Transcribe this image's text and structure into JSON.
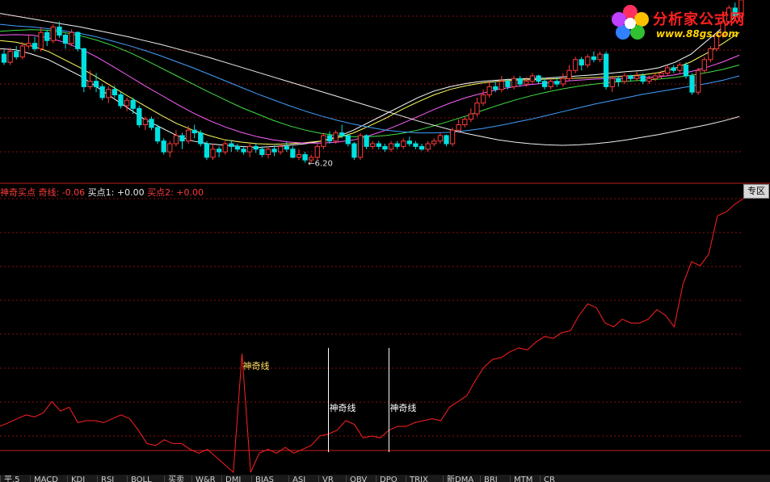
{
  "logo": {
    "title": "分析家公式网",
    "url": "www.88gs.com"
  },
  "indicator_header": {
    "name": "神奇买点",
    "qixian": "奇线: -0.06",
    "buy1": "买点1: +0.00",
    "buy2": "买点2: +0.00"
  },
  "zone_button": "专区",
  "tabs": [
    "平.5",
    "MACD",
    "KDJ",
    "RSI",
    "BOLL",
    "买卖",
    "W&R",
    "DMI",
    "BIAS",
    "ASI",
    "VR",
    "OBV",
    "DPO",
    "TRIX",
    "新DMA",
    "BRI",
    "MTM",
    "CR"
  ],
  "colors": {
    "up": "#ff3b3b",
    "down": "#00e0e0",
    "grid": "#8a1010",
    "indicator": "#ff2020"
  },
  "chart_data": [
    {
      "type": "candlestick",
      "annotations": [
        {
          "text": "←6.20",
          "index": 50,
          "value": 6.2
        }
      ],
      "candles": [
        [
          8.2,
          8.05,
          8.28,
          8.0
        ],
        [
          8.05,
          8.25,
          8.32,
          8.0
        ],
        [
          8.25,
          8.15,
          8.35,
          8.1
        ],
        [
          8.15,
          8.35,
          8.42,
          8.1
        ],
        [
          8.35,
          8.4,
          8.55,
          8.3
        ],
        [
          8.4,
          8.3,
          8.52,
          8.25
        ],
        [
          8.3,
          8.6,
          8.7,
          8.25
        ],
        [
          8.6,
          8.45,
          8.65,
          8.35
        ],
        [
          8.45,
          8.7,
          8.75,
          8.4
        ],
        [
          8.7,
          8.55,
          8.8,
          8.5
        ],
        [
          8.55,
          8.4,
          8.58,
          8.3
        ],
        [
          8.4,
          8.6,
          8.66,
          8.35
        ],
        [
          8.6,
          8.3,
          8.62,
          8.25
        ],
        [
          8.3,
          7.6,
          8.32,
          7.5
        ],
        [
          7.6,
          7.7,
          7.9,
          7.55
        ],
        [
          7.7,
          7.6,
          7.85,
          7.5
        ],
        [
          7.6,
          7.4,
          7.65,
          7.35
        ],
        [
          7.4,
          7.55,
          7.6,
          7.3
        ],
        [
          7.55,
          7.45,
          7.62,
          7.4
        ],
        [
          7.45,
          7.25,
          7.5,
          7.2
        ],
        [
          7.25,
          7.35,
          7.4,
          7.15
        ],
        [
          7.35,
          7.2,
          7.4,
          7.1
        ],
        [
          7.2,
          6.9,
          7.25,
          6.85
        ],
        [
          6.9,
          7.0,
          7.05,
          6.8
        ],
        [
          7.0,
          6.85,
          7.05,
          6.8
        ],
        [
          6.85,
          6.6,
          6.9,
          6.55
        ],
        [
          6.6,
          6.4,
          6.65,
          6.35
        ],
        [
          6.4,
          6.55,
          6.6,
          6.3
        ],
        [
          6.55,
          6.7,
          6.8,
          6.5
        ],
        [
          6.7,
          6.6,
          6.75,
          6.45
        ],
        [
          6.6,
          6.8,
          6.88,
          6.55
        ],
        [
          6.8,
          6.75,
          6.9,
          6.65
        ],
        [
          6.75,
          6.55,
          6.8,
          6.5
        ],
        [
          6.55,
          6.3,
          6.6,
          6.25
        ],
        [
          6.3,
          6.45,
          6.55,
          6.25
        ],
        [
          6.45,
          6.4,
          6.5,
          6.3
        ],
        [
          6.4,
          6.55,
          6.6,
          6.35
        ],
        [
          6.55,
          6.5,
          6.62,
          6.4
        ],
        [
          6.5,
          6.45,
          6.55,
          6.4
        ],
        [
          6.45,
          6.4,
          6.5,
          6.35
        ],
        [
          6.4,
          6.5,
          6.55,
          6.3
        ],
        [
          6.5,
          6.45,
          6.55,
          6.38
        ],
        [
          6.45,
          6.35,
          6.5,
          6.3
        ],
        [
          6.35,
          6.45,
          6.5,
          6.28
        ],
        [
          6.45,
          6.4,
          6.52,
          6.32
        ],
        [
          6.4,
          6.5,
          6.55,
          6.35
        ],
        [
          6.5,
          6.45,
          6.58,
          6.4
        ],
        [
          6.45,
          6.3,
          6.5,
          6.28
        ],
        [
          6.3,
          6.35,
          6.45,
          6.25
        ],
        [
          6.35,
          6.25,
          6.4,
          6.2
        ],
        [
          6.25,
          6.3,
          6.35,
          6.2
        ],
        [
          6.3,
          6.5,
          6.55,
          6.25
        ],
        [
          6.5,
          6.7,
          6.75,
          6.45
        ],
        [
          6.7,
          6.6,
          6.78,
          6.55
        ],
        [
          6.6,
          6.75,
          6.8,
          6.55
        ],
        [
          6.75,
          6.7,
          6.9,
          6.65
        ],
        [
          6.7,
          6.55,
          6.72,
          6.5
        ],
        [
          6.55,
          6.3,
          6.58,
          6.25
        ],
        [
          6.3,
          6.7,
          6.75,
          6.25
        ],
        [
          6.7,
          6.5,
          6.72,
          6.45
        ],
        [
          6.5,
          6.55,
          6.6,
          6.45
        ],
        [
          6.55,
          6.5,
          6.6,
          6.45
        ],
        [
          6.5,
          6.45,
          6.55,
          6.4
        ],
        [
          6.45,
          6.55,
          6.6,
          6.4
        ],
        [
          6.55,
          6.5,
          6.6,
          6.45
        ],
        [
          6.5,
          6.6,
          6.65,
          6.45
        ],
        [
          6.6,
          6.55,
          6.68,
          6.5
        ],
        [
          6.55,
          6.5,
          6.6,
          6.45
        ],
        [
          6.5,
          6.45,
          6.55,
          6.42
        ],
        [
          6.45,
          6.55,
          6.6,
          6.4
        ],
        [
          6.55,
          6.6,
          6.65,
          6.5
        ],
        [
          6.6,
          6.7,
          6.75,
          6.55
        ],
        [
          6.7,
          6.55,
          6.72,
          6.5
        ],
        [
          6.55,
          6.8,
          6.85,
          6.5
        ],
        [
          6.8,
          6.9,
          7.0,
          6.75
        ],
        [
          6.9,
          7.0,
          7.05,
          6.85
        ],
        [
          7.0,
          7.1,
          7.2,
          6.95
        ],
        [
          7.1,
          7.3,
          7.4,
          7.05
        ],
        [
          7.3,
          7.45,
          7.55,
          7.25
        ],
        [
          7.45,
          7.6,
          7.7,
          7.4
        ],
        [
          7.6,
          7.55,
          7.7,
          7.5
        ],
        [
          7.55,
          7.7,
          7.8,
          7.5
        ],
        [
          7.7,
          7.6,
          7.75,
          7.55
        ],
        [
          7.6,
          7.75,
          7.8,
          7.55
        ],
        [
          7.75,
          7.65,
          7.8,
          7.6
        ],
        [
          7.65,
          7.7,
          7.78,
          7.6
        ],
        [
          7.7,
          7.8,
          7.85,
          7.65
        ],
        [
          7.8,
          7.7,
          7.82,
          7.65
        ],
        [
          7.7,
          7.6,
          7.75,
          7.55
        ],
        [
          7.6,
          7.7,
          7.75,
          7.55
        ],
        [
          7.7,
          7.65,
          7.78,
          7.6
        ],
        [
          7.65,
          7.75,
          7.85,
          7.6
        ],
        [
          7.75,
          7.9,
          8.0,
          7.7
        ],
        [
          7.9,
          8.1,
          8.15,
          7.85
        ],
        [
          8.1,
          8.0,
          8.15,
          7.9
        ],
        [
          8.0,
          8.15,
          8.2,
          7.95
        ],
        [
          8.15,
          8.1,
          8.25,
          8.05
        ],
        [
          8.1,
          8.2,
          8.25,
          8.05
        ],
        [
          8.2,
          7.6,
          8.25,
          7.55
        ],
        [
          7.6,
          7.75,
          7.8,
          7.5
        ],
        [
          7.75,
          7.7,
          7.8,
          7.6
        ],
        [
          7.7,
          7.8,
          7.85,
          7.65
        ],
        [
          7.8,
          7.75,
          7.82,
          7.7
        ],
        [
          7.75,
          7.8,
          7.88,
          7.7
        ],
        [
          7.8,
          7.7,
          7.85,
          7.65
        ],
        [
          7.7,
          7.75,
          7.8,
          7.65
        ],
        [
          7.75,
          7.8,
          7.85,
          7.7
        ],
        [
          7.8,
          7.85,
          7.9,
          7.75
        ],
        [
          7.85,
          7.95,
          8.0,
          7.8
        ],
        [
          7.95,
          7.9,
          8.0,
          7.85
        ],
        [
          7.9,
          8.0,
          8.05,
          7.85
        ],
        [
          8.0,
          7.8,
          8.05,
          7.75
        ],
        [
          7.8,
          7.5,
          7.85,
          7.45
        ],
        [
          7.5,
          7.9,
          7.95,
          7.45
        ],
        [
          7.9,
          8.1,
          8.15,
          7.85
        ],
        [
          8.1,
          8.3,
          8.35,
          8.05
        ],
        [
          8.3,
          8.55,
          8.6,
          8.25
        ],
        [
          8.55,
          8.8,
          8.85,
          8.5
        ],
        [
          8.8,
          9.05,
          9.1,
          8.75
        ],
        [
          9.05,
          8.9,
          9.15,
          8.85
        ],
        [
          8.9,
          9.2,
          9.3,
          8.85
        ]
      ],
      "ma": [
        {
          "color": "#ffffff",
          "values": [
            8.3,
            8.28,
            8.2,
            8.1,
            7.95,
            7.8,
            7.6,
            7.4,
            7.2,
            7.0,
            6.85,
            6.7,
            6.6,
            6.55,
            6.52,
            6.5,
            6.48,
            6.5,
            6.52,
            6.55,
            6.6,
            6.68,
            6.8,
            6.95,
            7.1,
            7.25,
            7.4,
            7.52,
            7.6,
            7.66,
            7.7,
            7.72,
            7.74,
            7.75,
            7.76,
            7.78,
            7.8,
            7.82,
            7.85,
            7.88,
            7.9,
            7.95,
            8.05,
            8.2,
            8.45,
            8.7,
            8.95
          ]
        },
        {
          "color": "#ffff60",
          "values": [
            8.45,
            8.42,
            8.35,
            8.25,
            8.1,
            7.95,
            7.78,
            7.6,
            7.42,
            7.25,
            7.08,
            6.92,
            6.8,
            6.7,
            6.62,
            6.58,
            6.55,
            6.54,
            6.55,
            6.57,
            6.6,
            6.66,
            6.75,
            6.88,
            7.02,
            7.18,
            7.32,
            7.45,
            7.55,
            7.62,
            7.67,
            7.7,
            7.72,
            7.73,
            7.74,
            7.75,
            7.76,
            7.77,
            7.78,
            7.8,
            7.82,
            7.86,
            7.94,
            8.06,
            8.22,
            8.4,
            8.6
          ]
        },
        {
          "color": "#ff60ff",
          "values": [
            8.55,
            8.56,
            8.55,
            8.5,
            8.42,
            8.3,
            8.15,
            7.98,
            7.8,
            7.62,
            7.45,
            7.28,
            7.12,
            6.98,
            6.86,
            6.76,
            6.68,
            6.62,
            6.58,
            6.56,
            6.56,
            6.58,
            6.62,
            6.7,
            6.8,
            6.92,
            7.05,
            7.18,
            7.3,
            7.4,
            7.48,
            7.55,
            7.6,
            7.64,
            7.67,
            7.7,
            7.72,
            7.74,
            7.75,
            7.76,
            7.77,
            7.78,
            7.82,
            7.88,
            7.96,
            8.06,
            8.18
          ]
        },
        {
          "color": "#40e040",
          "values": [
            8.62,
            8.64,
            8.65,
            8.64,
            8.6,
            8.54,
            8.46,
            8.36,
            8.24,
            8.1,
            7.95,
            7.8,
            7.65,
            7.5,
            7.36,
            7.22,
            7.1,
            6.98,
            6.88,
            6.8,
            6.74,
            6.7,
            6.68,
            6.68,
            6.7,
            6.74,
            6.8,
            6.88,
            6.97,
            7.06,
            7.16,
            7.26,
            7.35,
            7.43,
            7.5,
            7.56,
            7.61,
            7.65,
            7.68,
            7.7,
            7.72,
            7.74,
            7.77,
            7.81,
            7.86,
            7.92,
            8.0
          ]
        },
        {
          "color": "#40a0ff",
          "values": [
            8.75,
            8.72,
            8.7,
            8.67,
            8.63,
            8.58,
            8.52,
            8.44,
            8.36,
            8.27,
            8.17,
            8.06,
            7.95,
            7.83,
            7.71,
            7.59,
            7.47,
            7.36,
            7.25,
            7.15,
            7.06,
            6.98,
            6.91,
            6.85,
            6.8,
            6.77,
            6.75,
            6.75,
            6.76,
            6.79,
            6.83,
            6.88,
            6.94,
            7.0,
            7.07,
            7.14,
            7.21,
            7.28,
            7.34,
            7.4,
            7.46,
            7.51,
            7.56,
            7.61,
            7.66,
            7.72,
            7.8
          ]
        },
        {
          "color": "#f0f0f0",
          "values": [
            8.95,
            8.9,
            8.85,
            8.8,
            8.75,
            8.7,
            8.64,
            8.58,
            8.52,
            8.45,
            8.38,
            8.3,
            8.22,
            8.14,
            8.05,
            7.96,
            7.87,
            7.78,
            7.69,
            7.6,
            7.51,
            7.42,
            7.33,
            7.24,
            7.15,
            7.06,
            6.97,
            6.89,
            6.81,
            6.74,
            6.68,
            6.62,
            6.58,
            6.55,
            6.53,
            6.52,
            6.53,
            6.55,
            6.58,
            6.62,
            6.67,
            6.72,
            6.78,
            6.84,
            6.9,
            6.97,
            7.05
          ]
        }
      ]
    },
    {
      "type": "line",
      "series": [
        {
          "values": [
            -0.38,
            -0.36,
            -0.34,
            -0.32,
            -0.33,
            -0.31,
            -0.25,
            -0.3,
            -0.28,
            -0.36,
            -0.35,
            -0.35,
            -0.36,
            -0.34,
            -0.32,
            -0.34,
            -0.4,
            -0.47,
            -0.48,
            -0.45,
            -0.47,
            -0.47,
            -0.5,
            -0.52,
            -0.5,
            -0.54,
            -0.58,
            -0.62,
            0.0,
            -0.62,
            -0.52,
            -0.5,
            -0.52,
            -0.49,
            -0.52,
            -0.5,
            -0.48,
            -0.43,
            -0.42,
            -0.4,
            -0.35,
            -0.37,
            -0.44,
            -0.43,
            -0.44,
            -0.4,
            -0.38,
            -0.38,
            -0.36,
            -0.35,
            -0.34,
            -0.35,
            -0.28,
            -0.25,
            -0.22,
            -0.14,
            -0.07,
            -0.03,
            -0.02,
            0.01,
            0.03,
            0.02,
            0.06,
            0.09,
            0.08,
            0.11,
            0.12,
            0.2,
            0.26,
            0.24,
            0.16,
            0.14,
            0.18,
            0.16,
            0.16,
            0.18,
            0.23,
            0.2,
            0.14,
            0.36,
            0.48,
            0.46,
            0.52,
            0.72,
            0.74,
            0.78,
            0.81
          ]
        }
      ],
      "signals": [
        {
          "index": 28,
          "label": "神奇线"
        },
        {
          "index": 38,
          "label": "神奇线"
        },
        {
          "index": 45,
          "label": "神奇线"
        }
      ]
    }
  ]
}
